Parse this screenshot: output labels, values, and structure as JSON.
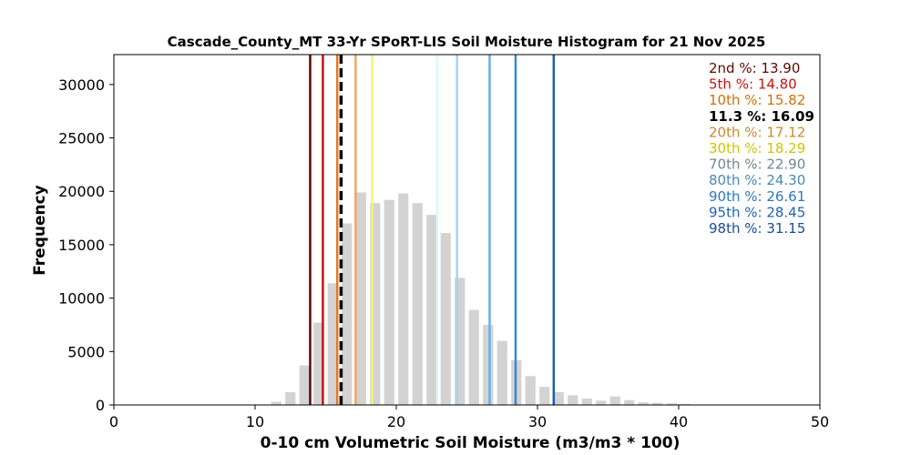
{
  "chart_data": {
    "type": "bar",
    "title": "Cascade_County_MT 33-Yr SPoRT-LIS Soil Moisture Histogram for 21 Nov 2025",
    "xlabel": "0-10 cm Volumetric Soil Moisture (m3/m3 * 100)",
    "ylabel": "Frequency",
    "xlim": [
      0,
      50
    ],
    "ylim": [
      0,
      32800
    ],
    "xticks": [
      0,
      10,
      20,
      30,
      40,
      50
    ],
    "yticks": [
      0,
      5000,
      10000,
      15000,
      20000,
      25000,
      30000
    ],
    "bar_color": "#d3d3d3",
    "bin_width": 1.0,
    "bins": [
      {
        "x": 11.5,
        "value": 300
      },
      {
        "x": 12.5,
        "value": 1200
      },
      {
        "x": 13.5,
        "value": 3700
      },
      {
        "x": 14.5,
        "value": 7700
      },
      {
        "x": 15.5,
        "value": 11400
      },
      {
        "x": 16.5,
        "value": 17000
      },
      {
        "x": 17.5,
        "value": 19900
      },
      {
        "x": 18.5,
        "value": 18900
      },
      {
        "x": 19.5,
        "value": 19200
      },
      {
        "x": 20.5,
        "value": 19800
      },
      {
        "x": 21.5,
        "value": 18900
      },
      {
        "x": 22.5,
        "value": 17800
      },
      {
        "x": 23.5,
        "value": 16100
      },
      {
        "x": 24.5,
        "value": 11900
      },
      {
        "x": 25.5,
        "value": 8900
      },
      {
        "x": 26.5,
        "value": 7500
      },
      {
        "x": 27.5,
        "value": 6000
      },
      {
        "x": 28.5,
        "value": 4200
      },
      {
        "x": 29.5,
        "value": 2700
      },
      {
        "x": 30.5,
        "value": 1700
      },
      {
        "x": 31.5,
        "value": 1200
      },
      {
        "x": 32.5,
        "value": 900
      },
      {
        "x": 33.5,
        "value": 600
      },
      {
        "x": 34.5,
        "value": 400
      },
      {
        "x": 35.5,
        "value": 800
      },
      {
        "x": 36.5,
        "value": 450
      },
      {
        "x": 37.5,
        "value": 250
      },
      {
        "x": 38.5,
        "value": 200
      },
      {
        "x": 39.5,
        "value": 150
      },
      {
        "x": 40.5,
        "value": 100
      }
    ],
    "percentile_lines": [
      {
        "label": "2nd %: 13.90",
        "value": 13.9,
        "color": "#5c0a00",
        "text_color": "#5c0a00",
        "dashed": false
      },
      {
        "label": "5th %: 14.80",
        "value": 14.8,
        "color": "#cc1010",
        "text_color": "#cc1010",
        "dashed": false
      },
      {
        "label": "10th %: 15.82",
        "value": 15.82,
        "color": "#e8781e",
        "text_color": "#d0700a",
        "dashed": false
      },
      {
        "label": "11.3 %: 16.09",
        "value": 16.09,
        "color": "#000000",
        "text_color": "#000000",
        "dashed": true
      },
      {
        "label": "20th %: 17.12",
        "value": 17.12,
        "color": "#f4a460",
        "text_color": "#c88a30",
        "dashed": false
      },
      {
        "label": "30th %: 18.29",
        "value": 18.29,
        "color": "#f5f56e",
        "text_color": "#c8c800",
        "dashed": false
      },
      {
        "label": "70th %: 22.90",
        "value": 22.9,
        "color": "#d8f8f8",
        "text_color": "#708888",
        "dashed": false
      },
      {
        "label": "80th %: 24.30",
        "value": 24.3,
        "color": "#a8d2f0",
        "text_color": "#4a88b8",
        "dashed": false
      },
      {
        "label": "90th %: 26.61",
        "value": 26.61,
        "color": "#6aaee6",
        "text_color": "#2a78c4",
        "dashed": false
      },
      {
        "label": "95th %: 28.45",
        "value": 28.45,
        "color": "#3a88d6",
        "text_color": "#1e64b4",
        "dashed": false
      },
      {
        "label": "98th %: 31.15",
        "value": 31.15,
        "color": "#1e5cb4",
        "text_color": "#184c9c",
        "dashed": false
      }
    ],
    "legend_position": "top-right",
    "grid": false
  }
}
